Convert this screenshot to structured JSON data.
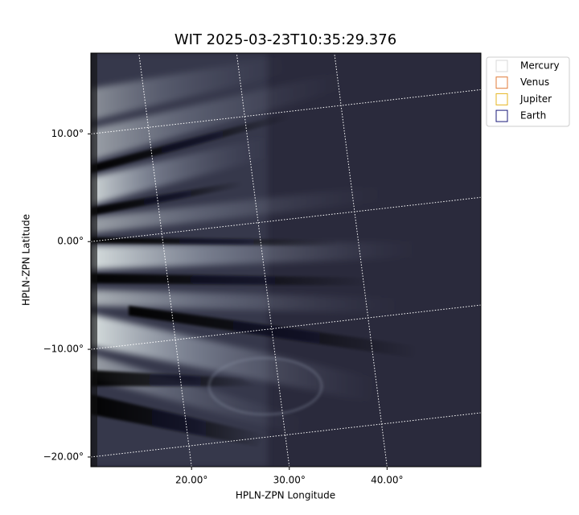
{
  "chart_data": {
    "type": "image",
    "title": "WIT 2025-03-23T10:35:29.376",
    "x_label": "HPLN-ZPN Longitude",
    "y_label": "HPLN-ZPN Latitude",
    "xlim": [
      9.7,
      49.6
    ],
    "ylim": [
      -20.9,
      17.5
    ],
    "xticks": [
      {
        "value": 20,
        "label": "20.00°"
      },
      {
        "value": 30,
        "label": "30.00°"
      },
      {
        "value": 40,
        "label": "40.00°"
      }
    ],
    "yticks": [
      {
        "value": -20,
        "label": "−20.00°"
      },
      {
        "value": -10,
        "label": "−10.00°"
      },
      {
        "value": 0,
        "label": "0.00°"
      },
      {
        "value": 10,
        "label": "10.00°"
      }
    ],
    "grid": true,
    "legend_position": "outside-upper-right",
    "series": [
      {
        "name": "Mercury",
        "color": "#d9d9d9"
      },
      {
        "name": "Venus",
        "color": "#e07b39"
      },
      {
        "name": "Jupiter",
        "color": "#e6b422"
      },
      {
        "name": "Earth",
        "color": "#1a1a7a"
      }
    ]
  }
}
